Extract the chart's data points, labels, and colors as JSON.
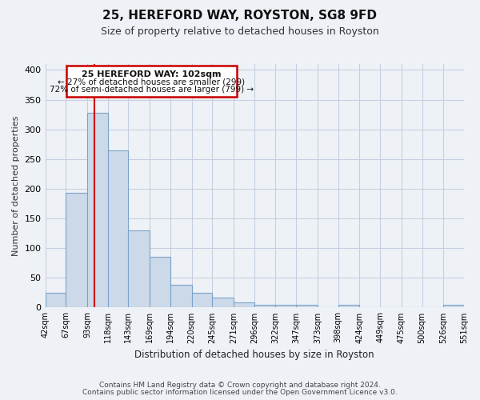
{
  "title": "25, HEREFORD WAY, ROYSTON, SG8 9FD",
  "subtitle": "Size of property relative to detached houses in Royston",
  "xlabel": "Distribution of detached houses by size in Royston",
  "ylabel": "Number of detached properties",
  "bin_edges": [
    42,
    67,
    93,
    118,
    143,
    169,
    194,
    220,
    245,
    271,
    296,
    322,
    347,
    373,
    398,
    424,
    449,
    475,
    500,
    526,
    551
  ],
  "bar_heights": [
    25,
    193,
    328,
    265,
    130,
    86,
    38,
    25,
    17,
    8,
    5,
    4,
    4,
    0,
    4,
    0,
    0,
    0,
    0,
    4
  ],
  "bar_color": "#ccd9e8",
  "bar_edge_color": "#7ba3c8",
  "vline_x": 102,
  "vline_color": "#cc0000",
  "annotation_title": "25 HEREFORD WAY: 102sqm",
  "annotation_line1": "← 27% of detached houses are smaller (299)",
  "annotation_line2": "72% of semi-detached houses are larger (799) →",
  "annotation_box_color": "#cc0000",
  "annotation_fill": "#ffffff",
  "ylim": [
    0,
    410
  ],
  "yticks": [
    0,
    50,
    100,
    150,
    200,
    250,
    300,
    350,
    400
  ],
  "tick_labels": [
    "42sqm",
    "67sqm",
    "93sqm",
    "118sqm",
    "143sqm",
    "169sqm",
    "194sqm",
    "220sqm",
    "245sqm",
    "271sqm",
    "296sqm",
    "322sqm",
    "347sqm",
    "373sqm",
    "398sqm",
    "424sqm",
    "449sqm",
    "475sqm",
    "500sqm",
    "526sqm",
    "551sqm"
  ],
  "footer1": "Contains HM Land Registry data © Crown copyright and database right 2024.",
  "footer2": "Contains public sector information licensed under the Open Government Licence v3.0.",
  "bg_color": "#eef2f7",
  "plot_bg_color": "#eef2f7",
  "grid_color": "#c5cfe0"
}
